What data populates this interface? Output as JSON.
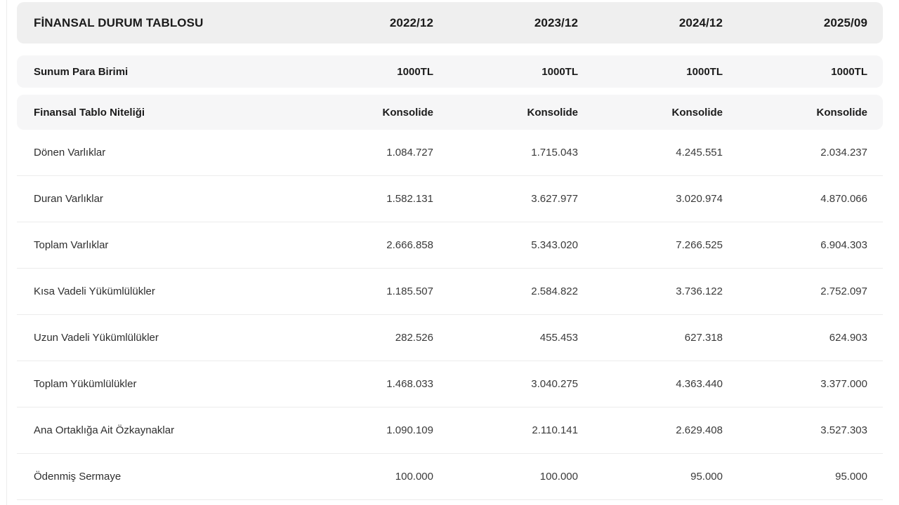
{
  "table": {
    "header": {
      "title": "FİNANSAL DURUM TABLOSU",
      "periods": [
        "2022/12",
        "2023/12",
        "2024/12",
        "2025/09"
      ]
    },
    "meta_rows": [
      {
        "label": "Sunum Para Birimi",
        "values": [
          "1000TL",
          "1000TL",
          "1000TL",
          "1000TL"
        ]
      },
      {
        "label": "Finansal Tablo Niteliği",
        "values": [
          "Konsolide",
          "Konsolide",
          "Konsolide",
          "Konsolide"
        ]
      }
    ],
    "data_rows": [
      {
        "label": "Dönen Varlıklar",
        "values": [
          "1.084.727",
          "1.715.043",
          "4.245.551",
          "2.034.237"
        ]
      },
      {
        "label": "Duran Varlıklar",
        "values": [
          "1.582.131",
          "3.627.977",
          "3.020.974",
          "4.870.066"
        ]
      },
      {
        "label": "Toplam Varlıklar",
        "values": [
          "2.666.858",
          "5.343.020",
          "7.266.525",
          "6.904.303"
        ]
      },
      {
        "label": "Kısa Vadeli Yükümlülükler",
        "values": [
          "1.185.507",
          "2.584.822",
          "3.736.122",
          "2.752.097"
        ]
      },
      {
        "label": "Uzun Vadeli Yükümlülükler",
        "values": [
          "282.526",
          "455.453",
          "627.318",
          "624.903"
        ]
      },
      {
        "label": "Toplam Yükümlülükler",
        "values": [
          "1.468.033",
          "3.040.275",
          "4.363.440",
          "3.377.000"
        ]
      },
      {
        "label": "Ana Ortaklığa Ait Özkaynaklar",
        "values": [
          "1.090.109",
          "2.110.141",
          "2.629.408",
          "3.527.303"
        ]
      },
      {
        "label": "Ödenmiş Sermaye",
        "values": [
          "100.000",
          "100.000",
          "95.000",
          "95.000"
        ]
      }
    ],
    "colors": {
      "title_band": "#efefef",
      "meta_band": "#f6f6f7",
      "row_separator": "#ececec",
      "header_text": "#1b1b1b",
      "body_text": "#333333",
      "page_background": "#ffffff"
    }
  }
}
